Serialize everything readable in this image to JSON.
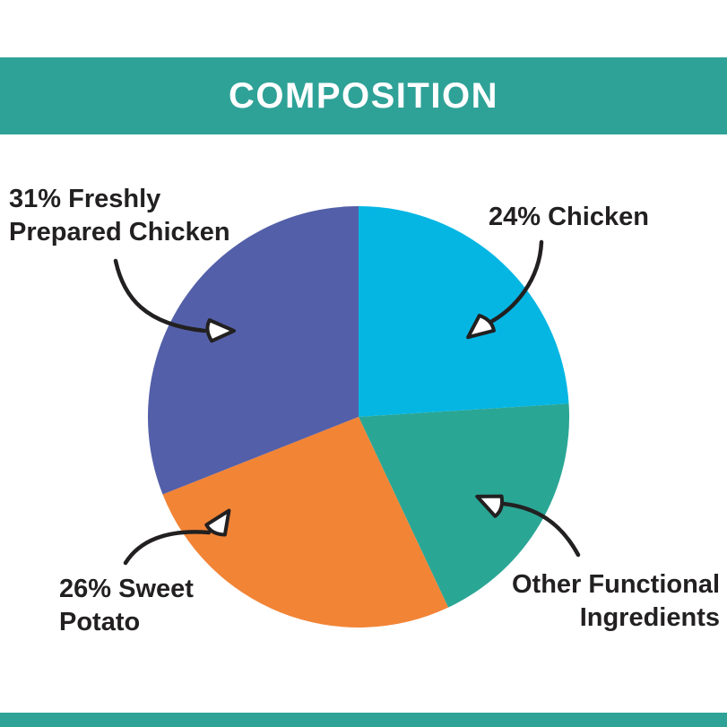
{
  "page": {
    "background_color": "#ffffff",
    "accent_color": "#2fa298",
    "text_color": "#222020"
  },
  "header": {
    "title": "COMPOSITION",
    "background_color": "#2fa298",
    "text_color": "#ffffff"
  },
  "footer": {
    "background_color": "#2fa298"
  },
  "labels": {
    "freshly_prepared_chicken": "31% Freshly\nPrepared Chicken",
    "chicken": "24% Chicken",
    "sweet_potato": "26% Sweet\nPotato",
    "other_functional": "Other Functional\nIngredients"
  },
  "chart_data": {
    "type": "pie",
    "title": "COMPOSITION",
    "start_angle_deg": 0,
    "direction": "clockwise",
    "legend_position": "none",
    "annotation_style": "hand-drawn curved arrows with hollow loop arrowheads",
    "slices": [
      {
        "label": "24% Chicken",
        "value": 24,
        "color": "#05b6e3",
        "percent_shown": true
      },
      {
        "label": "Other Functional Ingredients",
        "value": 19,
        "color": "#2aa695",
        "percent_shown": false
      },
      {
        "label": "26% Sweet Potato",
        "value": 26,
        "color": "#f28436",
        "percent_shown": true
      },
      {
        "label": "31% Freshly Prepared Chicken",
        "value": 31,
        "color": "#535fa8",
        "percent_shown": true
      }
    ]
  }
}
